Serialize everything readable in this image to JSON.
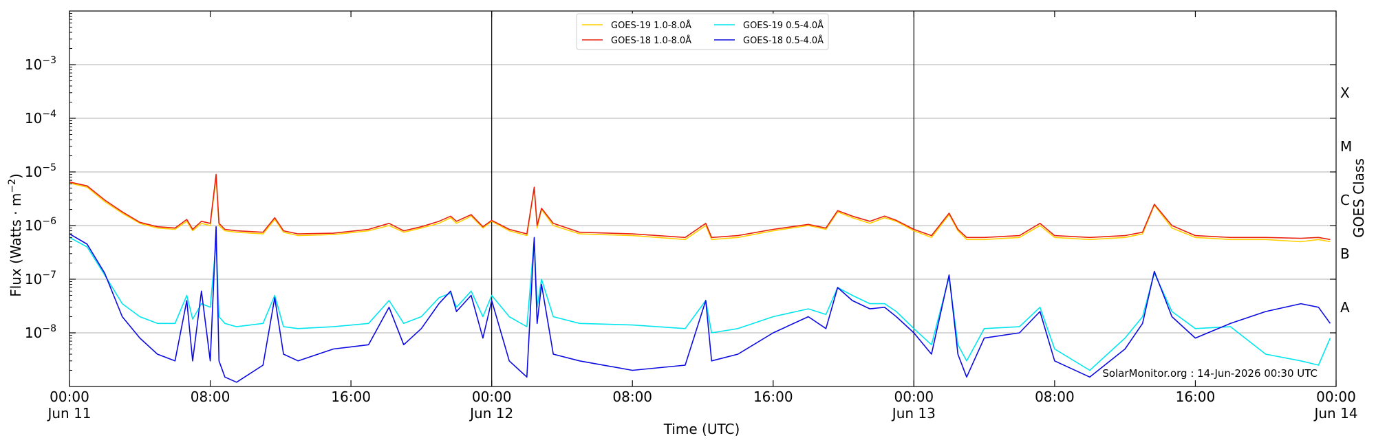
{
  "chart_data": {
    "type": "line",
    "title": "",
    "xlabel": "Time (UTC)",
    "ylabel": "Flux (Watts · m",
    "ylabel_sup": "−2",
    "ylabel_close": ")",
    "y2label": "GOES Class",
    "yscale": "log",
    "ylim": [
      1e-09,
      0.01
    ],
    "xlim": [
      "2026-06-11 00:00",
      "2026-06-14 00:00"
    ],
    "grid": "horizontal",
    "legend_position": "top-center",
    "day_boundaries": [
      "2026-06-12 00:00",
      "2026-06-13 00:00"
    ],
    "y_ticks": [
      {
        "value": 1e-08,
        "base": "10",
        "exp": "−8"
      },
      {
        "value": 1e-07,
        "base": "10",
        "exp": "−7"
      },
      {
        "value": 1e-06,
        "base": "10",
        "exp": "−6"
      },
      {
        "value": 1e-05,
        "base": "10",
        "exp": "−5"
      },
      {
        "value": 0.0001,
        "base": "10",
        "exp": "−4"
      },
      {
        "value": 0.001,
        "base": "10",
        "exp": "−3"
      }
    ],
    "class_labels": [
      {
        "label": "A",
        "value": 3e-08
      },
      {
        "label": "B",
        "value": 3e-07
      },
      {
        "label": "C",
        "value": 3e-06
      },
      {
        "label": "M",
        "value": 3e-05
      },
      {
        "label": "X",
        "value": 0.0003
      }
    ],
    "x_ticks": [
      {
        "time": "2026-06-11 00:00",
        "label": "00:00",
        "sublabel": "Jun 11"
      },
      {
        "time": "2026-06-11 08:00",
        "label": "08:00",
        "sublabel": ""
      },
      {
        "time": "2026-06-11 16:00",
        "label": "16:00",
        "sublabel": ""
      },
      {
        "time": "2026-06-12 00:00",
        "label": "00:00",
        "sublabel": "Jun 12"
      },
      {
        "time": "2026-06-12 08:00",
        "label": "08:00",
        "sublabel": ""
      },
      {
        "time": "2026-06-12 16:00",
        "label": "16:00",
        "sublabel": ""
      },
      {
        "time": "2026-06-13 00:00",
        "label": "00:00",
        "sublabel": "Jun 13"
      },
      {
        "time": "2026-06-13 08:00",
        "label": "08:00",
        "sublabel": ""
      },
      {
        "time": "2026-06-13 16:00",
        "label": "16:00",
        "sublabel": ""
      },
      {
        "time": "2026-06-14 00:00",
        "label": "00:00",
        "sublabel": "Jun 14"
      }
    ],
    "credit": "SolarMonitor.org : 14-Jun-2026 00:30 UTC",
    "series": [
      {
        "name": "GOES-19 1.0-8.0Å",
        "color": "#ffd000",
        "x": [
          "2026-06-11 00:00",
          "2026-06-11 01:00",
          "2026-06-11 02:00",
          "2026-06-11 03:00",
          "2026-06-11 04:00",
          "2026-06-11 05:00",
          "2026-06-11 06:00",
          "2026-06-11 06:40",
          "2026-06-11 07:00",
          "2026-06-11 07:30",
          "2026-06-11 08:00",
          "2026-06-11 08:20",
          "2026-06-11 08:30",
          "2026-06-11 08:50",
          "2026-06-11 09:30",
          "2026-06-11 11:00",
          "2026-06-11 11:40",
          "2026-06-11 12:10",
          "2026-06-11 13:00",
          "2026-06-11 15:00",
          "2026-06-11 17:00",
          "2026-06-11 18:10",
          "2026-06-11 19:00",
          "2026-06-11 20:00",
          "2026-06-11 21:00",
          "2026-06-11 21:40",
          "2026-06-11 22:00",
          "2026-06-11 22:50",
          "2026-06-11 23:30",
          "2026-06-12 00:00",
          "2026-06-12 01:00",
          "2026-06-12 02:00",
          "2026-06-12 02:25",
          "2026-06-12 02:35",
          "2026-06-12 02:50",
          "2026-06-12 03:30",
          "2026-06-12 05:00",
          "2026-06-12 08:00",
          "2026-06-12 11:00",
          "2026-06-12 12:10",
          "2026-06-12 12:30",
          "2026-06-12 14:00",
          "2026-06-12 16:00",
          "2026-06-12 18:00",
          "2026-06-12 19:00",
          "2026-06-12 19:40",
          "2026-06-12 20:30",
          "2026-06-12 21:30",
          "2026-06-12 22:20",
          "2026-06-12 23:00",
          "2026-06-13 00:00",
          "2026-06-13 01:00",
          "2026-06-13 02:00",
          "2026-06-13 02:30",
          "2026-06-13 03:00",
          "2026-06-13 04:00",
          "2026-06-13 06:00",
          "2026-06-13 07:10",
          "2026-06-13 08:00",
          "2026-06-13 10:00",
          "2026-06-13 12:00",
          "2026-06-13 13:00",
          "2026-06-13 13:40",
          "2026-06-13 14:40",
          "2026-06-13 16:00",
          "2026-06-13 18:00",
          "2026-06-13 20:00",
          "2026-06-13 22:00",
          "2026-06-13 23:00",
          "2026-06-13 23:40"
        ],
        "values": [
          6.2e-06,
          5.2e-06,
          2.8e-06,
          1.7e-06,
          1.1e-06,
          9e-07,
          8.5e-07,
          1.2e-06,
          8e-07,
          1.1e-06,
          1e-06,
          8e-06,
          1e-06,
          8e-07,
          7.5e-07,
          7e-07,
          1.3e-06,
          7.5e-07,
          6.5e-07,
          6.8e-07,
          8e-07,
          1e-06,
          7.5e-07,
          9e-07,
          1.1e-06,
          1.4e-06,
          1.1e-06,
          1.5e-06,
          9e-07,
          1.2e-06,
          8e-07,
          6.5e-07,
          5e-06,
          9e-07,
          2e-06,
          1e-06,
          7e-07,
          6.5e-07,
          5.5e-07,
          1e-06,
          5.5e-07,
          6e-07,
          8e-07,
          1e-06,
          8.5e-07,
          1.8e-06,
          1.4e-06,
          1.1e-06,
          1.4e-06,
          1.2e-06,
          8e-07,
          6e-07,
          1.6e-06,
          8e-07,
          5.5e-07,
          5.5e-07,
          6e-07,
          1e-06,
          6e-07,
          5.5e-07,
          6e-07,
          7e-07,
          2.4e-06,
          9e-07,
          6e-07,
          5.5e-07,
          5.5e-07,
          5e-07,
          5.5e-07,
          5e-07
        ]
      },
      {
        "name": "GOES-18 1.0-8.0Å",
        "color": "#e8200c",
        "x": [
          "2026-06-11 00:00",
          "2026-06-11 01:00",
          "2026-06-11 02:00",
          "2026-06-11 03:00",
          "2026-06-11 04:00",
          "2026-06-11 05:00",
          "2026-06-11 06:00",
          "2026-06-11 06:40",
          "2026-06-11 07:00",
          "2026-06-11 07:30",
          "2026-06-11 08:00",
          "2026-06-11 08:20",
          "2026-06-11 08:30",
          "2026-06-11 08:50",
          "2026-06-11 09:30",
          "2026-06-11 11:00",
          "2026-06-11 11:40",
          "2026-06-11 12:10",
          "2026-06-11 13:00",
          "2026-06-11 15:00",
          "2026-06-11 17:00",
          "2026-06-11 18:10",
          "2026-06-11 19:00",
          "2026-06-11 20:00",
          "2026-06-11 21:00",
          "2026-06-11 21:40",
          "2026-06-11 22:00",
          "2026-06-11 22:50",
          "2026-06-11 23:30",
          "2026-06-12 00:00",
          "2026-06-12 01:00",
          "2026-06-12 02:00",
          "2026-06-12 02:25",
          "2026-06-12 02:35",
          "2026-06-12 02:50",
          "2026-06-12 03:30",
          "2026-06-12 05:00",
          "2026-06-12 08:00",
          "2026-06-12 11:00",
          "2026-06-12 12:10",
          "2026-06-12 12:30",
          "2026-06-12 14:00",
          "2026-06-12 16:00",
          "2026-06-12 18:00",
          "2026-06-12 19:00",
          "2026-06-12 19:40",
          "2026-06-12 20:30",
          "2026-06-12 21:30",
          "2026-06-12 22:20",
          "2026-06-12 23:00",
          "2026-06-13 00:00",
          "2026-06-13 01:00",
          "2026-06-13 02:00",
          "2026-06-13 02:30",
          "2026-06-13 03:00",
          "2026-06-13 04:00",
          "2026-06-13 06:00",
          "2026-06-13 07:10",
          "2026-06-13 08:00",
          "2026-06-13 10:00",
          "2026-06-13 12:00",
          "2026-06-13 13:00",
          "2026-06-13 13:40",
          "2026-06-13 14:40",
          "2026-06-13 16:00",
          "2026-06-13 18:00",
          "2026-06-13 20:00",
          "2026-06-13 22:00",
          "2026-06-13 23:00",
          "2026-06-13 23:40"
        ],
        "values": [
          6.5e-06,
          5.5e-06,
          3e-06,
          1.8e-06,
          1.15e-06,
          9.5e-07,
          9e-07,
          1.3e-06,
          8.5e-07,
          1.2e-06,
          1.1e-06,
          9e-06,
          1.1e-06,
          8.5e-07,
          8e-07,
          7.5e-07,
          1.4e-06,
          8e-07,
          7e-07,
          7.2e-07,
          8.5e-07,
          1.1e-06,
          8e-07,
          9.5e-07,
          1.2e-06,
          1.5e-06,
          1.2e-06,
          1.6e-06,
          9.5e-07,
          1.25e-06,
          8.5e-07,
          7e-07,
          5.2e-06,
          1e-06,
          2.1e-06,
          1.1e-06,
          7.5e-07,
          7e-07,
          6e-07,
          1.1e-06,
          6e-07,
          6.5e-07,
          8.5e-07,
          1.05e-06,
          9e-07,
          1.9e-06,
          1.5e-06,
          1.2e-06,
          1.5e-06,
          1.25e-06,
          8.5e-07,
          6.5e-07,
          1.7e-06,
          8.5e-07,
          6e-07,
          6e-07,
          6.5e-07,
          1.1e-06,
          6.5e-07,
          6e-07,
          6.5e-07,
          7.5e-07,
          2.5e-06,
          1e-06,
          6.5e-07,
          6e-07,
          6e-07,
          5.8e-07,
          6e-07,
          5.5e-07
        ]
      },
      {
        "name": "GOES-19 0.5-4.0Å",
        "color": "#00e5ee",
        "x": [
          "2026-06-11 00:00",
          "2026-06-11 01:00",
          "2026-06-11 02:00",
          "2026-06-11 03:00",
          "2026-06-11 04:00",
          "2026-06-11 05:00",
          "2026-06-11 06:00",
          "2026-06-11 06:40",
          "2026-06-11 07:00",
          "2026-06-11 07:30",
          "2026-06-11 08:00",
          "2026-06-11 08:20",
          "2026-06-11 08:30",
          "2026-06-11 08:50",
          "2026-06-11 09:30",
          "2026-06-11 11:00",
          "2026-06-11 11:40",
          "2026-06-11 12:10",
          "2026-06-11 13:00",
          "2026-06-11 15:00",
          "2026-06-11 17:00",
          "2026-06-11 18:10",
          "2026-06-11 19:00",
          "2026-06-11 20:00",
          "2026-06-11 21:00",
          "2026-06-11 21:40",
          "2026-06-11 22:00",
          "2026-06-11 22:50",
          "2026-06-11 23:30",
          "2026-06-12 00:00",
          "2026-06-12 01:00",
          "2026-06-12 02:00",
          "2026-06-12 02:25",
          "2026-06-12 02:35",
          "2026-06-12 02:50",
          "2026-06-12 03:30",
          "2026-06-12 05:00",
          "2026-06-12 08:00",
          "2026-06-12 11:00",
          "2026-06-12 12:10",
          "2026-06-12 12:30",
          "2026-06-12 14:00",
          "2026-06-12 16:00",
          "2026-06-12 18:00",
          "2026-06-12 19:00",
          "2026-06-12 19:40",
          "2026-06-12 20:30",
          "2026-06-12 21:30",
          "2026-06-12 22:20",
          "2026-06-12 23:00",
          "2026-06-13 00:00",
          "2026-06-13 01:00",
          "2026-06-13 02:00",
          "2026-06-13 02:30",
          "2026-06-13 03:00",
          "2026-06-13 04:00",
          "2026-06-13 06:00",
          "2026-06-13 07:10",
          "2026-06-13 08:00",
          "2026-06-13 10:00",
          "2026-06-13 12:00",
          "2026-06-13 13:00",
          "2026-06-13 13:40",
          "2026-06-13 14:40",
          "2026-06-13 16:00",
          "2026-06-13 18:00",
          "2026-06-13 20:00",
          "2026-06-13 22:00",
          "2026-06-13 23:00",
          "2026-06-13 23:40"
        ],
        "values": [
          6e-07,
          4e-07,
          1.2e-07,
          3.5e-08,
          2e-08,
          1.5e-08,
          1.5e-08,
          5e-08,
          1.8e-08,
          3.5e-08,
          3e-08,
          5e-07,
          2e-08,
          1.5e-08,
          1.3e-08,
          1.5e-08,
          5e-08,
          1.3e-08,
          1.2e-08,
          1.3e-08,
          1.5e-08,
          4e-08,
          1.5e-08,
          2e-08,
          4.5e-08,
          5.5e-08,
          3e-08,
          6e-08,
          2e-08,
          5e-08,
          2e-08,
          1.3e-08,
          5.5e-07,
          3e-08,
          1e-07,
          2e-08,
          1.5e-08,
          1.4e-08,
          1.2e-08,
          4e-08,
          1e-08,
          1.2e-08,
          2e-08,
          2.8e-08,
          2.2e-08,
          7e-08,
          5e-08,
          3.5e-08,
          3.5e-08,
          2.5e-08,
          1.2e-08,
          6e-09,
          1.1e-07,
          6e-09,
          3e-09,
          1.2e-08,
          1.3e-08,
          3e-08,
          5e-09,
          2e-09,
          8e-09,
          2e-08,
          1.3e-07,
          2.5e-08,
          1.2e-08,
          1.3e-08,
          4e-09,
          3e-09,
          2.5e-09,
          8e-09
        ]
      },
      {
        "name": "GOES-18 0.5-4.0Å",
        "color": "#0a0ae0",
        "x": [
          "2026-06-11 00:00",
          "2026-06-11 01:00",
          "2026-06-11 02:00",
          "2026-06-11 03:00",
          "2026-06-11 04:00",
          "2026-06-11 05:00",
          "2026-06-11 06:00",
          "2026-06-11 06:40",
          "2026-06-11 07:00",
          "2026-06-11 07:30",
          "2026-06-11 08:00",
          "2026-06-11 08:20",
          "2026-06-11 08:30",
          "2026-06-11 08:50",
          "2026-06-11 09:30",
          "2026-06-11 11:00",
          "2026-06-11 11:40",
          "2026-06-11 12:10",
          "2026-06-11 13:00",
          "2026-06-11 15:00",
          "2026-06-11 17:00",
          "2026-06-11 18:10",
          "2026-06-11 19:00",
          "2026-06-11 20:00",
          "2026-06-11 21:00",
          "2026-06-11 21:40",
          "2026-06-11 22:00",
          "2026-06-11 22:50",
          "2026-06-11 23:30",
          "2026-06-12 00:00",
          "2026-06-12 01:00",
          "2026-06-12 02:00",
          "2026-06-12 02:25",
          "2026-06-12 02:35",
          "2026-06-12 02:50",
          "2026-06-12 03:30",
          "2026-06-12 05:00",
          "2026-06-12 08:00",
          "2026-06-12 11:00",
          "2026-06-12 12:10",
          "2026-06-12 12:30",
          "2026-06-12 14:00",
          "2026-06-12 16:00",
          "2026-06-12 18:00",
          "2026-06-12 19:00",
          "2026-06-12 19:40",
          "2026-06-12 20:30",
          "2026-06-12 21:30",
          "2026-06-12 22:20",
          "2026-06-12 23:00",
          "2026-06-13 00:00",
          "2026-06-13 01:00",
          "2026-06-13 02:00",
          "2026-06-13 02:30",
          "2026-06-13 03:00",
          "2026-06-13 04:00",
          "2026-06-13 06:00",
          "2026-06-13 07:10",
          "2026-06-13 08:00",
          "2026-06-13 10:00",
          "2026-06-13 12:00",
          "2026-06-13 13:00",
          "2026-06-13 13:40",
          "2026-06-13 14:40",
          "2026-06-13 16:00",
          "2026-06-13 18:00",
          "2026-06-13 20:00",
          "2026-06-13 22:00",
          "2026-06-13 23:00",
          "2026-06-13 23:40"
        ],
        "values": [
          7e-07,
          4.5e-07,
          1.3e-07,
          2e-08,
          8e-09,
          4e-09,
          3e-09,
          4e-08,
          3e-09,
          6e-08,
          3e-09,
          9.5e-07,
          3e-09,
          1.5e-09,
          1.2e-09,
          2.5e-09,
          4.5e-08,
          4e-09,
          3e-09,
          5e-09,
          6e-09,
          3e-08,
          6e-09,
          1.2e-08,
          3.5e-08,
          6e-08,
          2.5e-08,
          5e-08,
          8e-09,
          4e-08,
          3e-09,
          1.5e-09,
          6e-07,
          1.5e-08,
          8e-08,
          4e-09,
          3e-09,
          2e-09,
          2.5e-09,
          4e-08,
          3e-09,
          4e-09,
          1e-08,
          2e-08,
          1.2e-08,
          7e-08,
          4e-08,
          2.8e-08,
          3e-08,
          2e-08,
          1e-08,
          4e-09,
          1.2e-07,
          4e-09,
          1.5e-09,
          8e-09,
          1e-08,
          2.5e-08,
          3e-09,
          1.5e-09,
          5e-09,
          1.5e-08,
          1.4e-07,
          2e-08,
          8e-09,
          1.5e-08,
          2.5e-08,
          3.5e-08,
          3e-08,
          1.5e-08
        ]
      }
    ]
  }
}
